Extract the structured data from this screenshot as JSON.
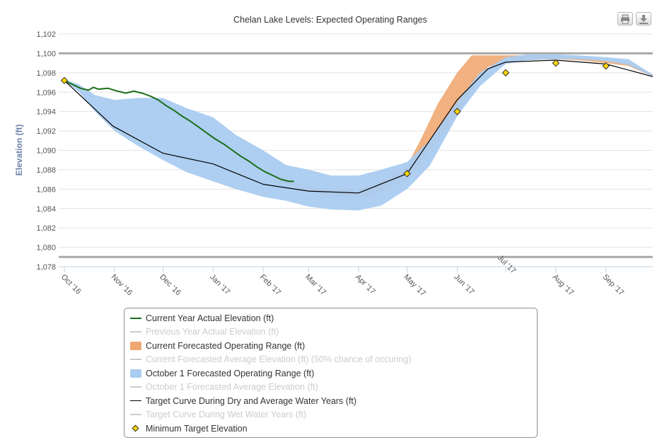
{
  "chart_data": {
    "type": "area",
    "title": "Chelan Lake Levels: Expected Operating Ranges",
    "ylabel": "Elevation (ft)",
    "xlabel": "",
    "ylim": [
      1078,
      1102
    ],
    "y_ticks": [
      1078,
      1080,
      1082,
      1084,
      1086,
      1088,
      1090,
      1092,
      1094,
      1096,
      1098,
      1100,
      1102
    ],
    "y_tick_labels": [
      "1,078",
      "1,080",
      "1,082",
      "1,084",
      "1,086",
      "1,088",
      "1,090",
      "1,092",
      "1,094",
      "1,096",
      "1,098",
      "1,100",
      "1,102"
    ],
    "plot_bands": [
      1100,
      1079
    ],
    "x_range": [
      "2016-10-01",
      "2017-09-30"
    ],
    "x_ticks": [
      {
        "date": "2016-10-01",
        "label": "Oct '16"
      },
      {
        "date": "2016-11-01",
        "label": "Nov '16"
      },
      {
        "date": "2016-12-01",
        "label": "Dec '16"
      },
      {
        "date": "2017-01-01",
        "label": "Jan '17"
      },
      {
        "date": "2017-02-01",
        "label": "Feb '17"
      },
      {
        "date": "2017-03-01",
        "label": "Mar '17"
      },
      {
        "date": "2017-04-01",
        "label": "Apr '17"
      },
      {
        "date": "2017-05-01",
        "label": "May '17"
      },
      {
        "date": "2017-06-01",
        "label": "Jun '17"
      },
      {
        "date": "2017-07-01",
        "label": "Jul '17"
      },
      {
        "date": "2017-08-01",
        "label": "Aug '17"
      },
      {
        "date": "2017-09-01",
        "label": "Sep '17"
      }
    ],
    "series": [
      {
        "name": "Current Year Actual Elevation (ft)",
        "type": "line",
        "color": "#1b6e1b",
        "visible": true,
        "x": [
          "2016-10-01",
          "2016-10-06",
          "2016-10-11",
          "2016-10-16",
          "2016-10-19",
          "2016-10-22",
          "2016-10-28",
          "2016-11-03",
          "2016-11-08",
          "2016-11-13",
          "2016-11-18",
          "2016-11-23",
          "2016-11-28",
          "2016-12-03",
          "2016-12-08",
          "2016-12-13",
          "2016-12-18",
          "2016-12-23",
          "2016-12-28",
          "2017-01-02",
          "2017-01-08",
          "2017-01-13",
          "2017-01-18",
          "2017-01-23",
          "2017-01-28",
          "2017-02-02",
          "2017-02-07",
          "2017-02-12",
          "2017-02-17",
          "2017-02-20"
        ],
        "y": [
          1097.2,
          1096.8,
          1096.4,
          1096.2,
          1096.5,
          1096.3,
          1096.4,
          1096.1,
          1095.9,
          1096.1,
          1095.9,
          1095.6,
          1095.2,
          1094.6,
          1094.1,
          1093.5,
          1093.0,
          1092.4,
          1091.8,
          1091.2,
          1090.6,
          1090.0,
          1089.4,
          1088.9,
          1088.3,
          1087.8,
          1087.4,
          1087.0,
          1086.8,
          1086.8
        ]
      },
      {
        "name": "Previous Year Actual Elevation (ft)",
        "type": "line",
        "color": "#cccccc",
        "visible": false
      },
      {
        "name": "Current Forecasted Operating Range (ft)",
        "type": "arearange",
        "color": "#f0a872",
        "visible": true,
        "x": [
          "2017-02-08",
          "2017-02-18",
          "2017-03-01",
          "2017-03-15",
          "2017-04-01",
          "2017-04-15",
          "2017-05-01",
          "2017-05-10",
          "2017-05-20",
          "2017-06-01",
          "2017-06-10",
          "2017-06-20",
          "2017-07-01",
          "2017-07-15",
          "2017-08-01",
          "2017-08-15",
          "2017-09-01",
          "2017-09-15",
          "2017-09-30"
        ],
        "low": [
          1086.8,
          1086.4,
          1085.7,
          1085.3,
          1085.1,
          1085.6,
          1087.0,
          1088.8,
          1091.0,
          1093.6,
          1096.2,
          1098.6,
          1099.2,
          1099.3,
          1099.4,
          1099.3,
          1099.0,
          1098.7,
          1097.6
        ],
        "high": [
          1087.5,
          1087.0,
          1086.3,
          1086.0,
          1086.0,
          1086.8,
          1088.4,
          1091.3,
          1094.8,
          1098.0,
          1099.8,
          1099.8,
          1099.8,
          1099.8,
          1099.8,
          1099.6,
          1099.2,
          1099.0,
          1097.8
        ]
      },
      {
        "name": "Current Forecasted Average Elevation (ft) (50% chance of occuring)",
        "type": "line",
        "color": "#cccccc",
        "visible": false
      },
      {
        "name": "October 1 Forecasted Operating Range (ft)",
        "type": "arearange",
        "color": "#aaccf0",
        "visible": true,
        "x": [
          "2016-10-01",
          "2016-10-10",
          "2016-10-20",
          "2016-11-01",
          "2016-11-15",
          "2016-12-01",
          "2016-12-15",
          "2017-01-01",
          "2017-01-15",
          "2017-02-01",
          "2017-02-15",
          "2017-03-01",
          "2017-03-15",
          "2017-04-01",
          "2017-04-15",
          "2017-05-01",
          "2017-05-15",
          "2017-06-01",
          "2017-06-15",
          "2017-07-01",
          "2017-07-15",
          "2017-08-01",
          "2017-08-15",
          "2017-09-01",
          "2017-09-15",
          "2017-09-30"
        ],
        "low": [
          1097.2,
          1096.0,
          1094.0,
          1092.0,
          1090.5,
          1089.0,
          1087.8,
          1086.8,
          1086.0,
          1085.2,
          1084.8,
          1084.2,
          1083.9,
          1083.8,
          1084.3,
          1086.0,
          1088.4,
          1093.5,
          1096.6,
          1098.9,
          1099.3,
          1099.4,
          1099.4,
          1099.2,
          1098.8,
          1097.6
        ],
        "high": [
          1097.3,
          1096.8,
          1095.7,
          1095.2,
          1095.4,
          1095.4,
          1094.4,
          1093.4,
          1091.6,
          1090.0,
          1088.5,
          1088.0,
          1087.4,
          1087.4,
          1088.0,
          1088.8,
          1091.0,
          1095.0,
          1098.0,
          1099.6,
          1099.9,
          1099.9,
          1099.8,
          1099.6,
          1099.4,
          1097.8
        ]
      },
      {
        "name": "October 1 Forecasted Average Elevation (ft)",
        "type": "line",
        "color": "#cccccc",
        "visible": false
      },
      {
        "name": "Target Curve During Dry and Average Water Years (ft)",
        "type": "line",
        "color": "#000000",
        "visible": true,
        "x": [
          "2016-10-01",
          "2016-10-31",
          "2016-12-01",
          "2017-01-01",
          "2017-02-01",
          "2017-03-01",
          "2017-04-01",
          "2017-05-01",
          "2017-06-01",
          "2017-06-20",
          "2017-07-01",
          "2017-08-01",
          "2017-09-01",
          "2017-09-30"
        ],
        "y": [
          1097.2,
          1092.5,
          1089.7,
          1088.6,
          1086.5,
          1085.8,
          1085.6,
          1087.6,
          1095.2,
          1098.4,
          1099.1,
          1099.3,
          1098.9,
          1097.6
        ]
      },
      {
        "name": "Target Curve During Wet Water Years (ft)",
        "type": "line",
        "color": "#cccccc",
        "visible": false
      },
      {
        "name": "Minimum Target Elevation",
        "type": "scatter",
        "color": "#ffd500",
        "visible": true,
        "x": [
          "2016-10-01",
          "2017-05-01",
          "2017-06-01",
          "2017-07-01",
          "2017-08-01",
          "2017-09-01"
        ],
        "y": [
          1097.2,
          1087.6,
          1094.0,
          1098.0,
          1099.0,
          1098.7
        ]
      }
    ]
  },
  "buttons": {
    "print_icon": "printer-icon",
    "download_icon": "download-icon"
  }
}
